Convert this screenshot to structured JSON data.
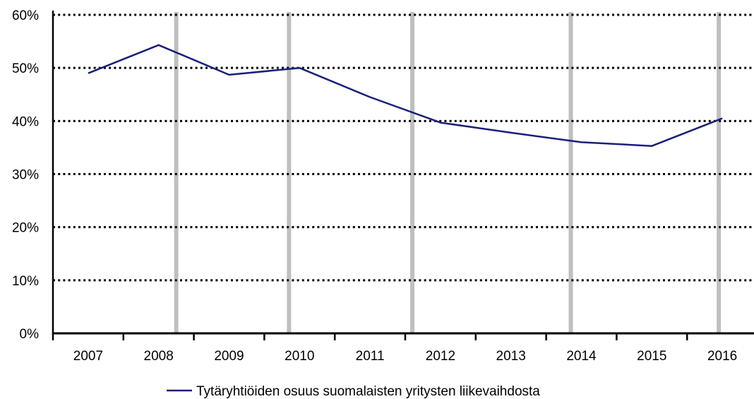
{
  "chart_data": {
    "type": "line",
    "title": "",
    "xlabel": "",
    "ylabel": "",
    "categories": [
      "2007",
      "2008",
      "2009",
      "2010",
      "2011",
      "2012",
      "2013",
      "2014",
      "2015",
      "2016"
    ],
    "series": [
      {
        "name": "Tytäryhtiöiden osuus suomalaisten yritysten liikevaihdosta",
        "values": [
          49.0,
          54.3,
          48.7,
          50.0,
          44.5,
          39.7,
          37.8,
          36.0,
          35.3,
          40.5
        ],
        "color": "#1a1f7a"
      }
    ],
    "y_ticks": [
      0,
      10,
      20,
      30,
      40,
      50,
      60
    ],
    "y_tick_labels": [
      "0%",
      "10%",
      "20%",
      "30%",
      "40%",
      "50%",
      "60%"
    ],
    "ylim": [
      0,
      60
    ],
    "grid": "horizontal-dotted",
    "legend": "bottom-center",
    "vertical_band_years": [
      2008.25,
      2009.85,
      2011.6,
      2013.85,
      2015.95
    ],
    "vertical_band_color": "#bfbfbf",
    "axis_color": "#000000",
    "grid_color": "#000000"
  }
}
